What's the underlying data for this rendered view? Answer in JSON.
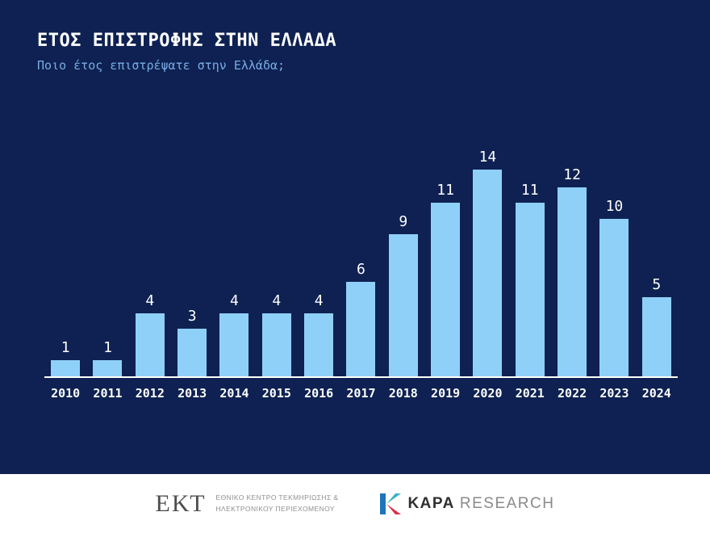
{
  "page": {
    "title": "ΕΤΟΣ ΕΠΙΣΤΡΟΦΗΣ ΣΤΗΝ ΕΛΛΑΔΑ",
    "subtitle": "Ποιο έτος επιστρέψατε στην Ελλάδα;"
  },
  "chart_data": {
    "type": "bar",
    "title": "ΕΤΟΣ ΕΠΙΣΤΡΟΦΗΣ ΣΤΗΝ ΕΛΛΑΔΑ",
    "subtitle": "Ποιο έτος επιστρέψατε στην Ελλάδα;",
    "categories": [
      "2010",
      "2011",
      "2012",
      "2013",
      "2014",
      "2015",
      "2016",
      "2017",
      "2018",
      "2019",
      "2020",
      "2021",
      "2022",
      "2023",
      "2024"
    ],
    "values": [
      1,
      1,
      4,
      3,
      4,
      4,
      4,
      6,
      9,
      11,
      14,
      11,
      12,
      10,
      5
    ],
    "xlabel": "",
    "ylabel": "",
    "ylim": [
      0,
      14
    ],
    "grid": false,
    "legend": false,
    "value_labels": true,
    "bar_color": "#8fd0f8"
  },
  "colors": {
    "background": "#0e2152",
    "bar": "#8fd0f8",
    "subtitle": "#79ade4",
    "axis_line": "#ffffff",
    "label_text": "#ffffff"
  },
  "footer": {
    "ekt": {
      "logo_text": "ΕΚΤ",
      "line1": "ΕΘΝΙΚΟ ΚΕΝΤΡΟ ΤΕΚΜΗΡΙΩΣΗΣ &",
      "line2": "ΗΛΕΚΤΡΟΝΙΚΟΥ ΠΕΡΙΕΧΟΜΕΝΟΥ"
    },
    "kapa": {
      "name_bold": "KAPA",
      "name_light": "RESEARCH",
      "icon_colors": {
        "left": "#1e74bc",
        "top": "#3bb1c9",
        "bottom": "#d8324a"
      }
    }
  }
}
